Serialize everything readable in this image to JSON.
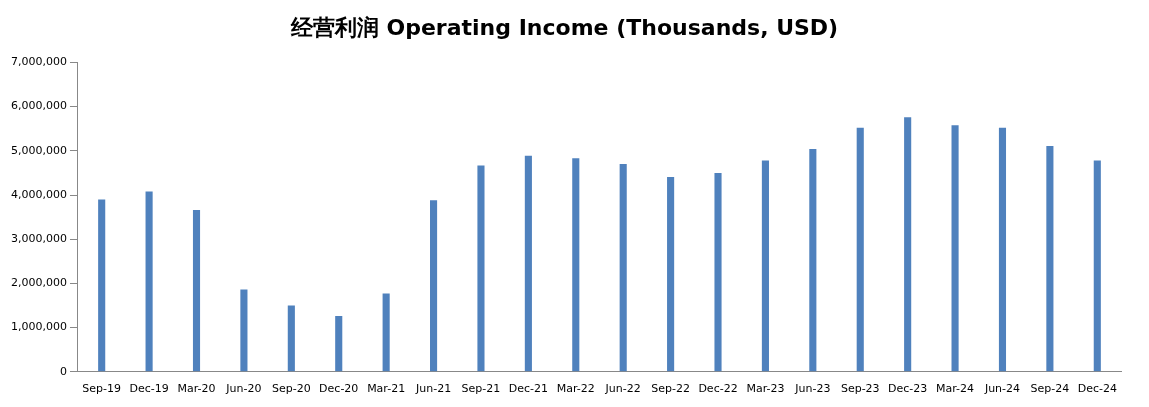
{
  "chart_data": {
    "type": "bar",
    "title": "经营利润 Operating Income (Thousands, USD)",
    "categories": [
      "Sep-19",
      "Dec-19",
      "Mar-20",
      "Jun-20",
      "Sep-20",
      "Dec-20",
      "Mar-21",
      "Jun-21",
      "Sep-21",
      "Dec-21",
      "Mar-22",
      "Jun-22",
      "Sep-22",
      "Dec-22",
      "Mar-23",
      "Jun-23",
      "Sep-23",
      "Dec-23",
      "Mar-24",
      "Jun-24",
      "Sep-24",
      "Dec-24"
    ],
    "values": [
      3900000,
      4080000,
      3660000,
      1860000,
      1500000,
      1260000,
      1770000,
      3880000,
      4670000,
      4890000,
      4830000,
      4700000,
      4410000,
      4500000,
      4780000,
      5040000,
      5520000,
      5760000,
      5580000,
      5520000,
      5110000,
      4780000
    ],
    "color": "#4f81bd",
    "ylim": [
      0,
      7000000
    ],
    "yticks": [
      0,
      {
        "value": 1000000,
        "label": "1,000,000"
      },
      {
        "value": 2000000,
        "label": "2,000,000"
      },
      {
        "value": 3000000,
        "label": "3,000,000"
      },
      {
        "value": 4000000,
        "label": "4,000,000"
      },
      {
        "value": 5000000,
        "label": "5,000,000"
      },
      {
        "value": 6000000,
        "label": "6,000,000"
      },
      {
        "value": 7000000,
        "label": "7,000,000"
      }
    ],
    "grid": false,
    "legend": false
  }
}
